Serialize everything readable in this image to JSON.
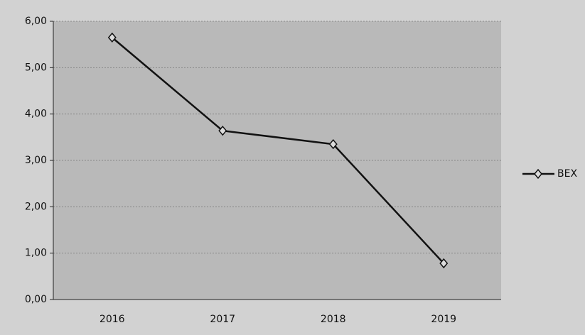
{
  "chart_data": {
    "type": "line",
    "categories": [
      "2016",
      "2017",
      "2018",
      "2019"
    ],
    "series": [
      {
        "name": "BEX",
        "color": "#111111",
        "values": [
          5.65,
          3.64,
          3.35,
          0.78
        ]
      }
    ],
    "ylim": [
      0,
      6
    ],
    "yticks": [
      {
        "value": 0,
        "label": "0,00"
      },
      {
        "value": 1,
        "label": "1,00"
      },
      {
        "value": 2,
        "label": "2,00"
      },
      {
        "value": 3,
        "label": "3,00"
      },
      {
        "value": 4,
        "label": "4,00"
      },
      {
        "value": 5,
        "label": "5,00"
      },
      {
        "value": 6,
        "label": "6,00"
      }
    ],
    "grid": true,
    "legend": "right"
  }
}
